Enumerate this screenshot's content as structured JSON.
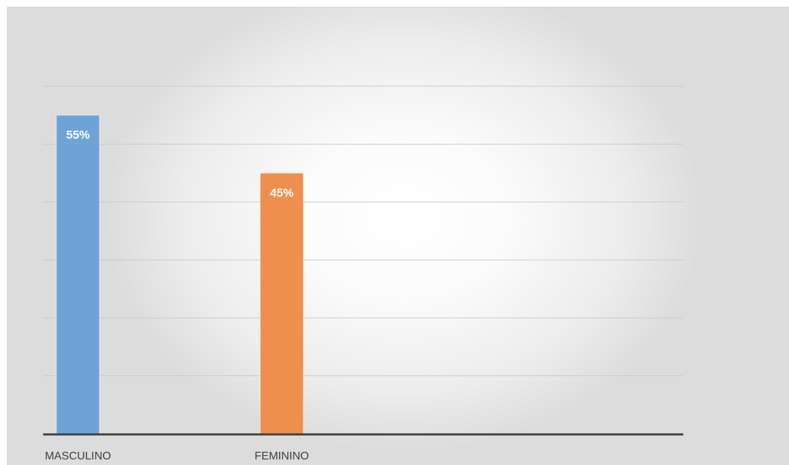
{
  "chart_data": {
    "type": "bar",
    "categories": [
      "MASCULINO",
      "FEMININO"
    ],
    "values": [
      55,
      45
    ],
    "value_labels": [
      "55%",
      "45%"
    ],
    "colors": [
      "#6fa3d8",
      "#ef8f4d"
    ],
    "ylim": [
      0,
      60
    ],
    "gridlines": [
      0,
      10,
      20,
      30,
      40,
      50,
      60
    ],
    "grid": true,
    "legend": "none"
  }
}
